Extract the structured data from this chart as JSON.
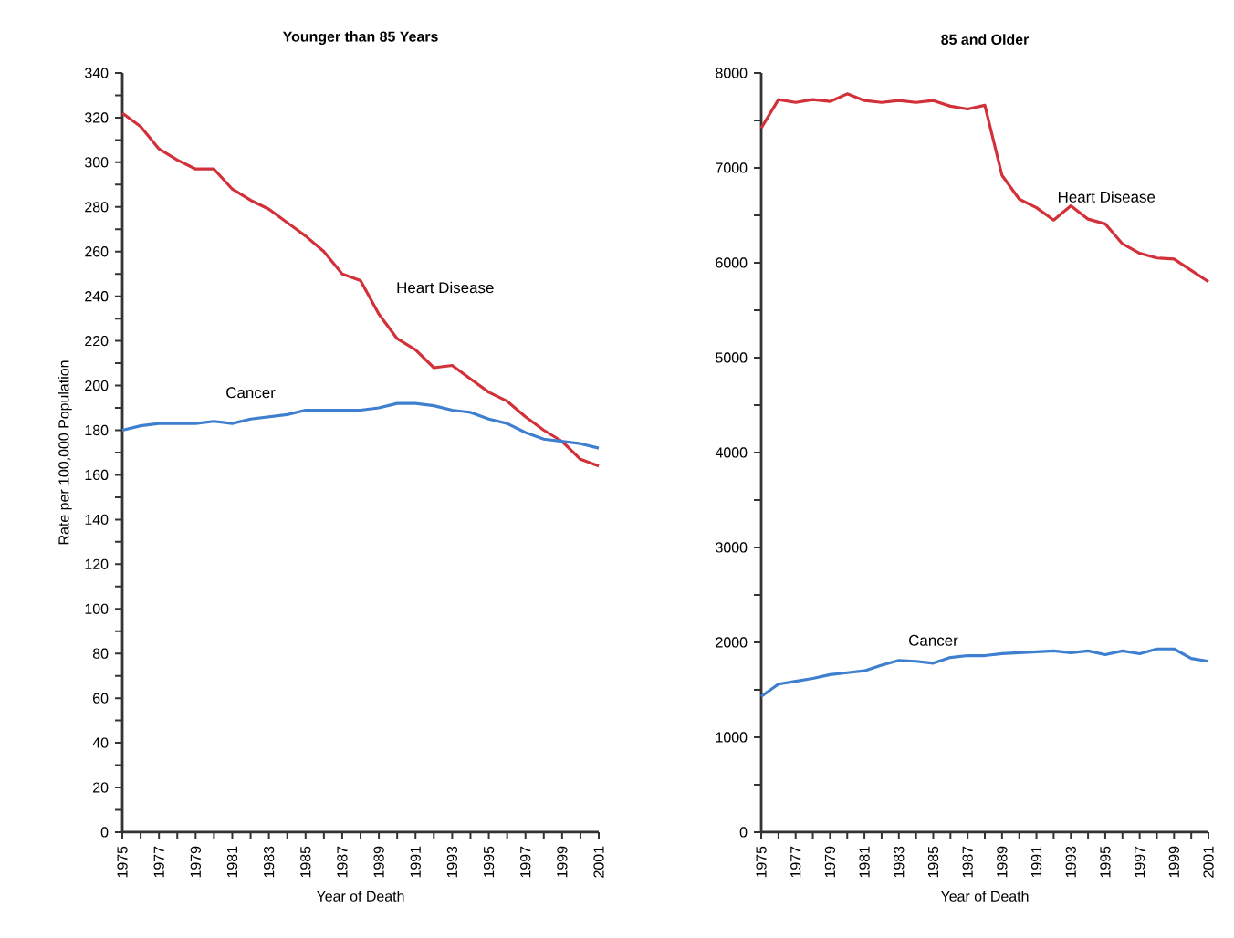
{
  "chart_data": [
    {
      "type": "line",
      "title": "Younger than 85 Years",
      "xlabel": "Year of Death",
      "ylabel": "Rate per 100,000 Population",
      "x": [
        1975,
        1976,
        1977,
        1978,
        1979,
        1980,
        1981,
        1982,
        1983,
        1984,
        1985,
        1986,
        1987,
        1988,
        1989,
        1990,
        1991,
        1992,
        1993,
        1994,
        1995,
        1996,
        1997,
        1998,
        1999,
        2000,
        2001
      ],
      "series": [
        {
          "name": "Heart Disease",
          "color": "#d2313a",
          "values": [
            322,
            316,
            306,
            301,
            297,
            297,
            288,
            283,
            279,
            273,
            267,
            260,
            250,
            247,
            232,
            221,
            216,
            208,
            209,
            203,
            197,
            193,
            186,
            180,
            175,
            167,
            164
          ]
        },
        {
          "name": "Cancer",
          "color": "#3f7fcf",
          "values": [
            180,
            182,
            183,
            183,
            183,
            184,
            183,
            185,
            186,
            187,
            189,
            189,
            189,
            189,
            190,
            192,
            192,
            191,
            189,
            188,
            185,
            183,
            179,
            176,
            175,
            174,
            172
          ]
        }
      ],
      "xlim": [
        1975,
        2001
      ],
      "ylim": [
        0,
        340
      ],
      "xticks": [
        1975,
        {
          "value": 1976,
          "label": null
        },
        1977,
        {
          "value": 1978,
          "label": null
        },
        1979,
        {
          "value": 1980,
          "label": null
        },
        1981,
        {
          "value": 1982,
          "label": null
        },
        1983,
        {
          "value": 1984,
          "label": null
        },
        1985,
        {
          "value": 1986,
          "label": null
        },
        1987,
        {
          "value": 1988,
          "label": null
        },
        1989,
        {
          "value": 1990,
          "label": null
        },
        1991,
        {
          "value": 1992,
          "label": null
        },
        1993,
        {
          "value": 1994,
          "label": null
        },
        1995,
        {
          "value": 1996,
          "label": null
        },
        1997,
        {
          "value": 1998,
          "label": null
        },
        1999,
        {
          "value": 2000,
          "label": null
        },
        2001
      ],
      "yticks": [
        0,
        {
          "value": 10,
          "label": null
        },
        20,
        {
          "value": 30,
          "label": null
        },
        40,
        {
          "value": 50,
          "label": null
        },
        60,
        {
          "value": 70,
          "label": null
        },
        80,
        {
          "value": 90,
          "label": null
        },
        100,
        {
          "value": 110,
          "label": null
        },
        120,
        {
          "value": 130,
          "label": null
        },
        140,
        {
          "value": 150,
          "label": null
        },
        160,
        {
          "value": 170,
          "label": null
        },
        180,
        {
          "value": 190,
          "label": null
        },
        200,
        {
          "value": 210,
          "label": null
        },
        220,
        {
          "value": 230,
          "label": null
        },
        240,
        {
          "value": 250,
          "label": null
        },
        260,
        {
          "value": 270,
          "label": null
        },
        280,
        {
          "value": 290,
          "label": null
        },
        300,
        {
          "value": 310,
          "label": null
        },
        320,
        {
          "value": 330,
          "label": null
        },
        340
      ]
    },
    {
      "type": "line",
      "title": "85 and Older",
      "xlabel": "Year of Death",
      "x": [
        1975,
        1976,
        1977,
        1978,
        1979,
        1980,
        1981,
        1982,
        1983,
        1984,
        1985,
        1986,
        1987,
        1988,
        1989,
        1990,
        1991,
        1992,
        1993,
        1994,
        1995,
        1996,
        1997,
        1998,
        1999,
        2000,
        2001
      ],
      "series": [
        {
          "name": "Heart Disease",
          "color": "#d2313a",
          "values": [
            7420,
            7720,
            7690,
            7720,
            7700,
            7780,
            7710,
            7690,
            7710,
            7690,
            7710,
            7650,
            7620,
            7660,
            6920,
            6670,
            6580,
            6450,
            6600,
            6460,
            6410,
            6200,
            6100,
            6050,
            6040,
            5920,
            5800
          ]
        },
        {
          "name": "Cancer",
          "color": "#3f7fcf",
          "values": [
            1430,
            1560,
            1590,
            1620,
            1660,
            1680,
            1700,
            1760,
            1810,
            1800,
            1780,
            1840,
            1860,
            1860,
            1880,
            1890,
            1900,
            1910,
            1890,
            1910,
            1870,
            1910,
            1880,
            1930,
            1930,
            1830,
            1800
          ]
        }
      ],
      "xlim": [
        1975,
        2001
      ],
      "ylim": [
        0,
        8000
      ],
      "xticks": [
        1975,
        {
          "value": 1976,
          "label": null
        },
        1977,
        {
          "value": 1978,
          "label": null
        },
        1979,
        {
          "value": 1980,
          "label": null
        },
        1981,
        {
          "value": 1982,
          "label": null
        },
        1983,
        {
          "value": 1984,
          "label": null
        },
        1985,
        {
          "value": 1986,
          "label": null
        },
        1987,
        {
          "value": 1988,
          "label": null
        },
        1989,
        {
          "value": 1990,
          "label": null
        },
        1991,
        {
          "value": 1992,
          "label": null
        },
        1993,
        {
          "value": 1994,
          "label": null
        },
        1995,
        {
          "value": 1996,
          "label": null
        },
        1997,
        {
          "value": 1998,
          "label": null
        },
        1999,
        {
          "value": 2000,
          "label": null
        },
        2001
      ],
      "yticks": [
        0,
        {
          "value": 500,
          "label": null
        },
        1000,
        {
          "value": 1500,
          "label": null
        },
        2000,
        {
          "value": 2500,
          "label": null
        },
        3000,
        {
          "value": 3500,
          "label": null
        },
        4000,
        {
          "value": 4500,
          "label": null
        },
        5000,
        {
          "value": 5500,
          "label": null
        },
        6000,
        {
          "value": 6500,
          "label": null
        },
        7000,
        {
          "value": 7500,
          "label": null
        },
        8000
      ]
    }
  ]
}
